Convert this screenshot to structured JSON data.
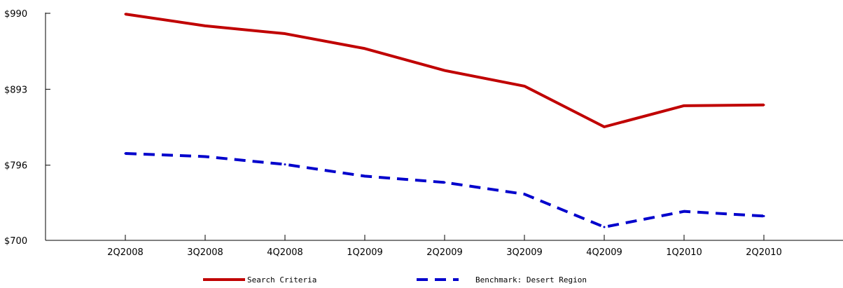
{
  "chart_data": {
    "type": "line",
    "categories": [
      "2Q2008",
      "3Q2008",
      "4Q2008",
      "1Q2009",
      "2Q2009",
      "3Q2009",
      "4Q2009",
      "1Q2010",
      "2Q2010"
    ],
    "y_ticks": [
      "$990",
      "$893",
      "$796",
      "$700"
    ],
    "y_tick_values": [
      990,
      893,
      796,
      700
    ],
    "ylim": [
      700,
      990
    ],
    "grid": false,
    "legend_position": "bottom",
    "series": [
      {
        "name": "Search Criteria",
        "color": "#c00000",
        "style": "solid",
        "values": [
          989,
          974,
          964,
          945,
          917,
          897,
          845,
          872,
          873
        ]
      },
      {
        "name": "Benchmark: Desert Region",
        "color": "#0000cc",
        "style": "dashed",
        "values": [
          811,
          807,
          797,
          782,
          774,
          759,
          717,
          737,
          731
        ]
      }
    ]
  }
}
